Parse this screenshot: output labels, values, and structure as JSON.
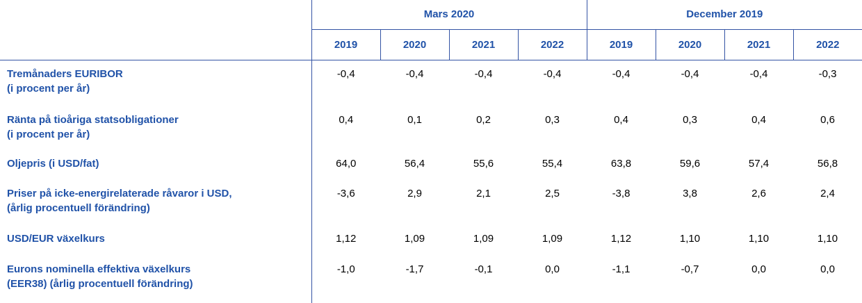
{
  "colors": {
    "label_blue": "#2052a8",
    "border_blue": "#3353a4",
    "value_black": "#000000",
    "background": "#ffffff"
  },
  "header": {
    "groups": [
      {
        "label": "Mars 2020",
        "years": [
          "2019",
          "2020",
          "2021",
          "2022"
        ]
      },
      {
        "label": "December 2019",
        "years": [
          "2019",
          "2020",
          "2021",
          "2022"
        ]
      }
    ]
  },
  "rows": [
    {
      "label_line1": "Tremånaders EURIBOR",
      "label_line2": "(i procent per år)",
      "values": [
        "-0,4",
        "-0,4",
        "-0,4",
        "-0,4",
        "-0,4",
        "-0,4",
        "-0,4",
        "-0,3"
      ]
    },
    {
      "label_line1": "Ränta på tioåriga statsobligationer",
      "label_line2": "(i procent per år)",
      "values": [
        "0,4",
        "0,1",
        "0,2",
        "0,3",
        "0,4",
        "0,3",
        "0,4",
        "0,6"
      ]
    },
    {
      "label_line1": "Oljepris (i USD/fat)",
      "label_line2": "",
      "values": [
        "64,0",
        "56,4",
        "55,6",
        "55,4",
        "63,8",
        "59,6",
        "57,4",
        "56,8"
      ]
    },
    {
      "label_line1": "Priser på icke-energirelaterade råvaror i USD,",
      "label_line2": "(årlig procentuell förändring)",
      "values": [
        "-3,6",
        "2,9",
        "2,1",
        "2,5",
        "-3,8",
        "3,8",
        "2,6",
        "2,4"
      ]
    },
    {
      "label_line1": "USD/EUR växelkurs",
      "label_line2": "",
      "values": [
        "1,12",
        "1,09",
        "1,09",
        "1,09",
        "1,12",
        "1,10",
        "1,10",
        "1,10"
      ]
    },
    {
      "label_line1": "Eurons nominella effektiva växelkurs",
      "label_line2": "(EER38) (årlig procentuell förändring)",
      "values": [
        "-1,0",
        "-1,7",
        "-0,1",
        "0,0",
        "-1,1",
        "-0,7",
        "0,0",
        "0,0"
      ]
    }
  ]
}
